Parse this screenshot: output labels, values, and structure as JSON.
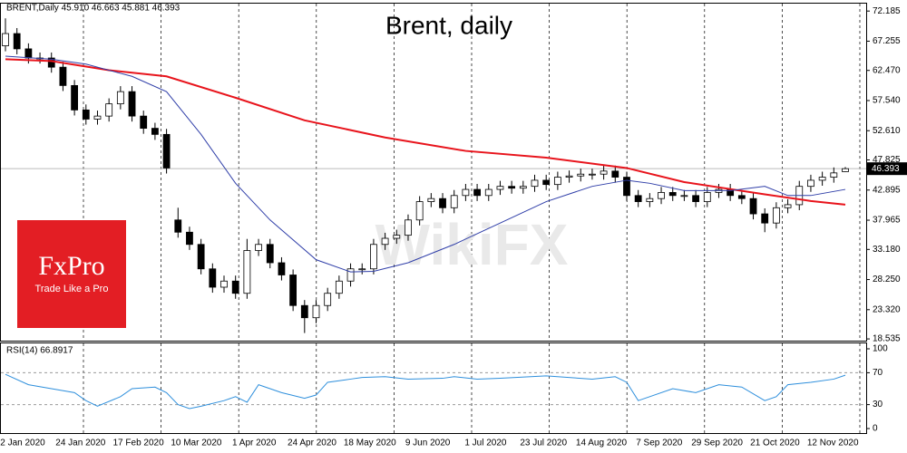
{
  "chart_data": [
    {
      "type": "candlestick",
      "title": "Brent, daily",
      "header": "BRENT,Daily  45.910 46.663 45.881 46.393",
      "logo_name": "FxPro",
      "logo_tagline": "Trade Like a Pro",
      "watermark": "WikiFX",
      "ylim": [
        18.4,
        73.4
      ],
      "yticks": [
        72.185,
        67.255,
        {
          "value": 62.47,
          "label": "62.470"
        },
        {
          "value": 57.54,
          "label": "57.540"
        },
        {
          "value": 52.61,
          "label": "52.610"
        },
        47.825,
        42.895,
        37.965,
        {
          "value": 33.18,
          "label": "33.180"
        },
        {
          "value": 28.25,
          "label": "28.250"
        },
        {
          "value": 23.32,
          "label": "23.320"
        },
        18.535
      ],
      "x_labels": [
        "2 Jan 2020",
        "24 Jan 2020",
        "17 Feb 2020",
        "10 Mar 2020",
        "1 Apr 2020",
        "24 Apr 2020",
        "18 May 2020",
        "9 Jun 2020",
        "1 Jul 2020",
        "23 Jul 2020",
        "14 Aug 2020",
        "7 Sep 2020",
        "29 Sep 2020",
        "21 Oct 2020",
        "12 Nov 2020"
      ],
      "open": [
        66.5,
        68.5,
        66.0,
        64.5,
        64.5,
        63.0,
        60.0,
        56.0,
        54.5,
        55.0,
        57.0,
        59.0,
        55.0,
        53.0,
        52.0,
        38.0,
        36.0,
        34.0,
        30.0,
        27.0,
        28.0,
        26.0,
        33.0,
        34.0,
        31.0,
        29.0,
        24.0,
        22.0,
        24.0,
        26.0,
        28.0,
        30.0,
        30.0,
        34.0,
        35.0,
        35.5,
        38.0,
        41.0,
        41.5,
        40.0,
        42.0,
        43.0,
        42.0,
        43.0,
        43.5,
        43.2,
        43.5,
        44.5,
        43.8,
        45.0,
        45.2,
        45.5,
        45.5,
        46.0,
        45.0,
        42.0,
        41.0,
        41.5,
        42.5,
        42.0,
        42.0,
        41.0,
        42.5,
        43.0,
        42.0,
        41.5,
        39.0,
        37.5,
        40.0,
        40.5,
        43.5,
        44.5,
        45.0,
        45.91
      ],
      "high": [
        71.0,
        69.4,
        66.9,
        65.4,
        65.4,
        63.9,
        60.9,
        56.9,
        55.9,
        57.9,
        59.9,
        59.9,
        55.9,
        53.9,
        52.9,
        40.0,
        36.9,
        34.9,
        30.9,
        28.9,
        28.9,
        34.9,
        34.9,
        34.9,
        31.9,
        29.9,
        24.9,
        24.9,
        26.9,
        28.9,
        30.9,
        30.9,
        34.9,
        35.9,
        36.4,
        38.9,
        41.9,
        42.4,
        42.4,
        42.9,
        43.9,
        43.9,
        43.9,
        44.4,
        44.4,
        44.4,
        45.4,
        45.4,
        45.9,
        46.1,
        46.4,
        46.4,
        46.9,
        46.9,
        45.9,
        42.9,
        42.4,
        43.4,
        43.4,
        42.9,
        42.9,
        43.4,
        43.9,
        43.9,
        42.9,
        42.4,
        39.9,
        40.9,
        41.4,
        44.4,
        45.4,
        45.9,
        46.6,
        46.663
      ],
      "low": [
        65.6,
        65.1,
        63.6,
        63.6,
        62.1,
        59.1,
        55.1,
        53.6,
        53.6,
        54.1,
        56.1,
        54.1,
        52.1,
        51.1,
        45.6,
        35.1,
        33.1,
        29.1,
        26.1,
        26.1,
        25.1,
        25.1,
        32.1,
        30.1,
        28.1,
        23.1,
        19.5,
        21.1,
        23.1,
        25.1,
        27.1,
        29.1,
        29.1,
        33.1,
        34.1,
        34.6,
        37.1,
        40.1,
        39.1,
        39.1,
        41.1,
        41.1,
        41.1,
        42.1,
        42.3,
        42.3,
        42.6,
        42.9,
        42.9,
        44.1,
        44.3,
        44.6,
        44.6,
        44.1,
        41.1,
        40.1,
        40.1,
        40.6,
        41.1,
        41.1,
        40.1,
        40.1,
        41.6,
        41.1,
        40.6,
        38.1,
        36.0,
        36.6,
        39.1,
        39.6,
        42.6,
        43.6,
        44.1,
        45.881
      ],
      "close": [
        68.5,
        66.0,
        64.5,
        64.5,
        63.0,
        60.0,
        56.0,
        54.5,
        55.0,
        57.0,
        59.0,
        55.0,
        53.0,
        52.0,
        46.5,
        36.0,
        34.0,
        30.0,
        27.0,
        28.0,
        26.0,
        33.0,
        34.0,
        31.0,
        29.0,
        24.0,
        22.0,
        24.0,
        26.0,
        28.0,
        30.0,
        30.0,
        34.0,
        35.0,
        35.5,
        38.0,
        41.0,
        41.5,
        40.0,
        42.0,
        43.0,
        42.0,
        43.0,
        43.5,
        43.2,
        43.5,
        44.5,
        43.8,
        45.0,
        45.2,
        45.5,
        45.5,
        46.0,
        45.0,
        42.0,
        41.0,
        41.5,
        42.5,
        42.0,
        42.0,
        41.0,
        42.5,
        43.0,
        42.0,
        41.5,
        39.0,
        37.5,
        40.0,
        40.5,
        43.5,
        44.5,
        45.0,
        45.7,
        46.393
      ],
      "up_color": "#ffffff",
      "down_color": "#000000",
      "series": [
        {
          "color": "#e8141c",
          "width": 2,
          "x": [
            0,
            4,
            9,
            14,
            20,
            26,
            33,
            40,
            47,
            54,
            59,
            66,
            70,
            73
          ],
          "values": [
            64.3,
            64.0,
            62.5,
            61.5,
            58,
            54.3,
            51.5,
            49.3,
            48.2,
            46.5,
            44.2,
            42.2,
            41.1,
            40.5
          ]
        },
        {
          "color": "#2f3ea8",
          "width": 1,
          "x": [
            0,
            4,
            7,
            11,
            14,
            17,
            20,
            23,
            27,
            30,
            32,
            35,
            39,
            43,
            47,
            51,
            54,
            56,
            59,
            63,
            66,
            68,
            70,
            73
          ],
          "values": [
            64.8,
            64.3,
            63.5,
            61.5,
            59,
            52,
            44,
            38,
            31.5,
            29.5,
            29.6,
            31,
            34,
            37.5,
            41,
            43.5,
            44.5,
            44.0,
            42.8,
            42.8,
            43.5,
            42.0,
            42.0,
            43.0
          ]
        }
      ]
    },
    {
      "type": "line",
      "label": "RSI(14) 66.8917",
      "ylim": [
        0,
        100
      ],
      "yticks": [
        100,
        70,
        30,
        0
      ],
      "series": [
        {
          "color": "#2e8fdc",
          "x": [
            0,
            2,
            4,
            6,
            7,
            8,
            10,
            11,
            13,
            14,
            15,
            16,
            17,
            19,
            20,
            21,
            22,
            24,
            26,
            27,
            28,
            30,
            31,
            33,
            35,
            38,
            39,
            41,
            43,
            47,
            51,
            53,
            54,
            55,
            56,
            58,
            60,
            62,
            64,
            66,
            67,
            68,
            70,
            72,
            73
          ],
          "values": [
            68,
            55,
            50,
            45,
            35,
            28,
            40,
            50,
            52,
            45,
            30,
            25,
            28,
            35,
            40,
            33,
            55,
            45,
            38,
            42,
            58,
            62,
            64,
            65,
            62,
            63,
            65,
            62,
            63,
            66,
            62,
            65,
            58,
            35,
            40,
            50,
            45,
            55,
            52,
            35,
            40,
            55,
            58,
            62,
            66.8917
          ]
        }
      ]
    }
  ]
}
